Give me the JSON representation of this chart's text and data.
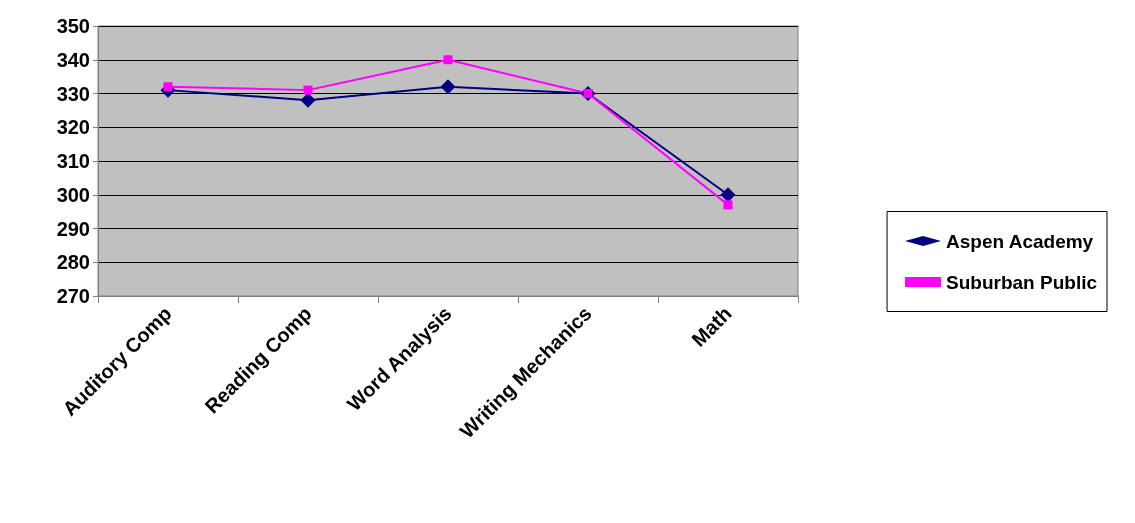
{
  "chart_data": {
    "type": "line",
    "categories": [
      "Auditory Comp",
      "Reading Comp",
      "Word Analysis",
      "Writing Mechanics",
      "Math"
    ],
    "series": [
      {
        "name": "Aspen Academy",
        "color": "#000080",
        "marker": "diamond",
        "values": [
          331,
          328,
          332,
          330,
          300
        ]
      },
      {
        "name": "Suburban Public",
        "color": "#ff00ff",
        "marker": "square",
        "values": [
          332,
          331,
          340,
          330,
          297
        ]
      }
    ],
    "ylim": [
      270,
      350
    ],
    "yticks": [
      270,
      280,
      290,
      300,
      310,
      320,
      330,
      340,
      350
    ],
    "grid": "y",
    "legend": "right"
  }
}
